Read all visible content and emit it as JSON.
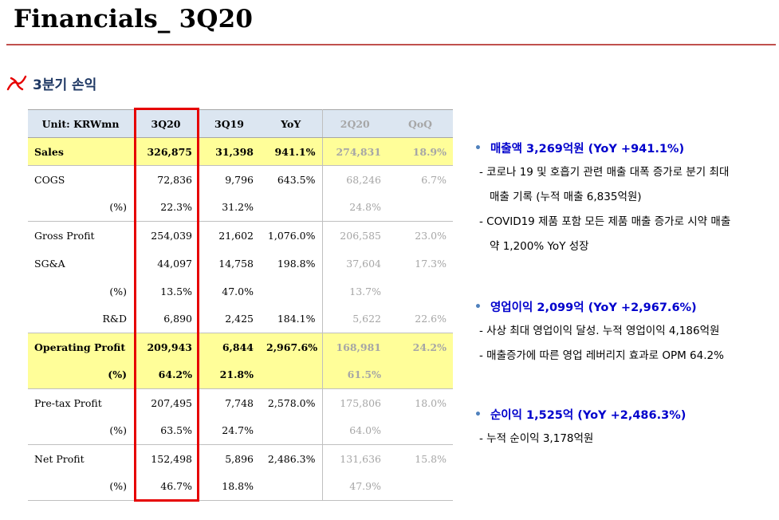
{
  "title": "Financials_ 3Q20",
  "section": {
    "icon": "red-swirl-icon",
    "label": "3분기 손익"
  },
  "table": {
    "headers": [
      "Unit: KRWmn",
      "3Q20",
      "3Q19",
      "YoY",
      "2Q20",
      "QoQ"
    ],
    "rows": [
      {
        "label": "Sales",
        "q320": "326,875",
        "q319": "31,398",
        "yoy": "941.1%",
        "q220": "274,831",
        "qoq": "18.9%"
      },
      {
        "label": "COGS",
        "q320": "72,836",
        "q319": "9,796",
        "yoy": "643.5%",
        "q220": "68,246",
        "qoq": "6.7%"
      },
      {
        "label": "(%)",
        "q320": "22.3%",
        "q319": "31.2%",
        "yoy": "",
        "q220": "24.8%",
        "qoq": ""
      },
      {
        "label": "Gross Profit",
        "q320": "254,039",
        "q319": "21,602",
        "yoy": "1,076.0%",
        "q220": "206,585",
        "qoq": "23.0%"
      },
      {
        "label": "SG&A",
        "q320": "44,097",
        "q319": "14,758",
        "yoy": "198.8%",
        "q220": "37,604",
        "qoq": "17.3%"
      },
      {
        "label": "(%)",
        "q320": "13.5%",
        "q319": "47.0%",
        "yoy": "",
        "q220": "13.7%",
        "qoq": ""
      },
      {
        "label": "R&D",
        "q320": "6,890",
        "q319": "2,425",
        "yoy": "184.1%",
        "q220": "5,622",
        "qoq": "22.6%"
      },
      {
        "label": "Operating Profit",
        "q320": "209,943",
        "q319": "6,844",
        "yoy": "2,967.6%",
        "q220": "168,981",
        "qoq": "24.2%"
      },
      {
        "label": "(%)",
        "q320": "64.2%",
        "q319": "21.8%",
        "yoy": "",
        "q220": "61.5%",
        "qoq": ""
      },
      {
        "label": "Pre-tax Profit",
        "q320": "207,495",
        "q319": "7,748",
        "yoy": "2,578.0%",
        "q220": "175,806",
        "qoq": "18.0%"
      },
      {
        "label": "(%)",
        "q320": "63.5%",
        "q319": "24.7%",
        "yoy": "",
        "q220": "64.0%",
        "qoq": ""
      },
      {
        "label": "Net Profit",
        "q320": "152,498",
        "q319": "5,896",
        "yoy": "2,486.3%",
        "q220": "131,636",
        "qoq": "15.8%"
      },
      {
        "label": "(%)",
        "q320": "46.7%",
        "q319": "18.8%",
        "yoy": "",
        "q220": "47.9%",
        "qoq": ""
      }
    ]
  },
  "notes": {
    "bullet": "•",
    "revenue": {
      "head": "매출액 3,269억원 (YoY +941.1%)",
      "lines": [
        "- 코로나 19 및 호흡기 관련 매출 대폭 증가로 분기 최대",
        "매출 기록 (누적 매출 6,835억원)",
        "- COVID19 제품 포함 모든 제품 매출 증가로 시약 매출",
        "약 1,200% YoY 성장"
      ]
    },
    "operating": {
      "head": "영업이익 2,099억 (YoY +2,967.6%)",
      "lines": [
        "- 사상 최대 영업이익 달성. 누적 영업이익 4,186억원",
        "- 매출증가에 따른 영업 레버리지 효과로 OPM 64.2%"
      ]
    },
    "net": {
      "head": "순이익 1,525억 (YoY +2,486.3%)",
      "lines": [
        "- 누적 순이익 3,178억원"
      ]
    }
  },
  "colors": {
    "rule": "#c0504d",
    "header_bg": "#dce6f1",
    "highlight_bg": "#fffe99",
    "box": "#e60000",
    "note_head": "#0000cc",
    "section": "#1f3864"
  }
}
